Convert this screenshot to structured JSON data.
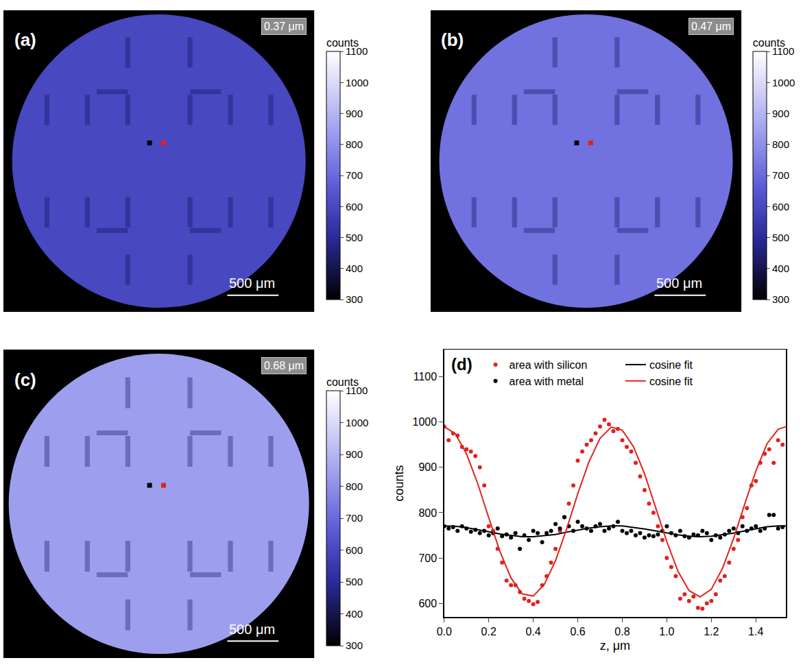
{
  "chart_data": [
    {
      "type": "image",
      "title": "(a)",
      "annotation": "0.37 μm",
      "scale_bar": "500 μm",
      "tick_labels": false,
      "mean_value": 600,
      "colorbar": {
        "title": "counts",
        "range": [
          300,
          1100
        ],
        "ticks": [
          300,
          400,
          500,
          600,
          700,
          800,
          900,
          1000,
          1100
        ]
      }
    },
    {
      "type": "image",
      "title": "(b)",
      "annotation": "0.47 μm",
      "scale_bar": "500 μm",
      "tick_labels": false,
      "mean_value": 720,
      "colorbar": {
        "title": "counts",
        "range": [
          300,
          1100
        ],
        "ticks": [
          300,
          400,
          500,
          600,
          700,
          800,
          900,
          1000,
          1100
        ]
      }
    },
    {
      "type": "image",
      "title": "(c)",
      "annotation": "0.68 μm",
      "scale_bar": "500 μm",
      "tick_labels": false,
      "mean_value": 840,
      "colorbar": {
        "title": "counts",
        "range": [
          300,
          1100
        ],
        "ticks": [
          300,
          400,
          500,
          600,
          700,
          800,
          900,
          1000,
          1100
        ]
      }
    },
    {
      "type": "scatter",
      "title": "(d)",
      "x_label": "z, μm",
      "y_label": "counts",
      "xlim": [
        0,
        1.535
      ],
      "ylim": [
        570,
        1160
      ],
      "xticks": [
        {
          "value": 0,
          "label": "0.0"
        },
        0.2,
        0.4,
        0.6,
        0.8,
        {
          "value": 1,
          "label": "1.0"
        },
        1.2,
        1.4
      ],
      "yticks": [
        600,
        700,
        800,
        900,
        1000,
        1100
      ],
      "grid": false,
      "legend": "upper left",
      "series": [
        {
          "name": "area with silicon",
          "type": "scatter",
          "marker": "circle",
          "color": "#e3211c",
          "x": [
            0,
            0.02,
            0.04,
            0.06,
            0.08,
            0.1,
            0.12,
            0.14,
            0.16,
            0.18,
            0.2,
            0.22,
            0.24,
            0.26,
            0.28,
            0.3,
            0.32,
            0.34,
            0.36,
            0.38,
            0.4,
            0.42,
            0.44,
            0.46,
            0.48,
            0.5,
            0.52,
            0.54,
            0.56,
            0.58,
            0.6,
            0.62,
            0.64,
            0.66,
            0.68,
            0.7,
            0.72,
            0.74,
            0.76,
            0.78,
            0.8,
            0.82,
            0.84,
            0.86,
            0.88,
            0.9,
            0.92,
            0.94,
            0.96,
            0.98,
            1,
            1.02,
            1.04,
            1.06,
            1.08,
            1.1,
            1.12,
            1.14,
            1.16,
            1.18,
            1.2,
            1.22,
            1.24,
            1.26,
            1.28,
            1.3,
            1.32,
            1.34,
            1.36,
            1.38,
            1.4,
            1.42,
            1.44,
            1.46,
            1.48,
            1.5,
            1.52
          ],
          "values": [
            990,
            960,
            975,
            970,
            945,
            940,
            935,
            925,
            900,
            860,
            770,
            760,
            720,
            690,
            650,
            640,
            640,
            625,
            610,
            605,
            598,
            603,
            640,
            660,
            690,
            720,
            760,
            790,
            820,
            860,
            915,
            935,
            950,
            960,
            975,
            990,
            1005,
            995,
            980,
            985,
            960,
            945,
            935,
            910,
            880,
            850,
            820,
            800,
            770,
            740,
            700,
            680,
            660,
            610,
            620,
            605,
            615,
            590,
            588,
            600,
            605,
            620,
            650,
            660,
            690,
            720,
            740,
            790,
            810,
            860,
            870,
            910,
            930,
            940,
            910,
            960,
            950
          ]
        },
        {
          "name": "area with metal",
          "type": "scatter",
          "marker": "circle",
          "color": "#000000",
          "x": [
            0,
            0.02,
            0.04,
            0.06,
            0.08,
            0.1,
            0.12,
            0.14,
            0.16,
            0.18,
            0.2,
            0.22,
            0.24,
            0.26,
            0.28,
            0.3,
            0.32,
            0.34,
            0.36,
            0.38,
            0.4,
            0.42,
            0.44,
            0.46,
            0.48,
            0.5,
            0.52,
            0.54,
            0.56,
            0.58,
            0.6,
            0.62,
            0.64,
            0.66,
            0.68,
            0.7,
            0.72,
            0.74,
            0.76,
            0.78,
            0.8,
            0.82,
            0.84,
            0.86,
            0.88,
            0.9,
            0.92,
            0.94,
            0.96,
            0.98,
            1,
            1.02,
            1.04,
            1.06,
            1.08,
            1.1,
            1.12,
            1.14,
            1.16,
            1.18,
            1.2,
            1.22,
            1.24,
            1.26,
            1.28,
            1.3,
            1.32,
            1.34,
            1.36,
            1.38,
            1.4,
            1.42,
            1.44,
            1.46,
            1.48,
            1.5,
            1.52
          ],
          "values": [
            770,
            765,
            768,
            760,
            770,
            765,
            758,
            762,
            755,
            760,
            750,
            755,
            765,
            748,
            752,
            745,
            755,
            720,
            750,
            740,
            760,
            755,
            735,
            755,
            760,
            775,
            765,
            790,
            770,
            760,
            780,
            770,
            765,
            760,
            770,
            775,
            760,
            765,
            770,
            780,
            760,
            755,
            760,
            750,
            755,
            745,
            750,
            748,
            752,
            760,
            770,
            755,
            750,
            760,
            748,
            745,
            752,
            750,
            760,
            755,
            740,
            750,
            745,
            752,
            760,
            765,
            755,
            770,
            760,
            765,
            770,
            760,
            765,
            795,
            795,
            765,
            768
          ]
        },
        {
          "name": "cosine fit",
          "type": "line",
          "line_style": "solid",
          "color": "#000000",
          "x": [
            0,
            0.05,
            0.1,
            0.15,
            0.2,
            0.25,
            0.3,
            0.35,
            0.4,
            0.45,
            0.5,
            0.55,
            0.6,
            0.65,
            0.7,
            0.75,
            0.8,
            0.85,
            0.9,
            0.95,
            1,
            1.05,
            1.1,
            1.15,
            1.2,
            1.25,
            1.3,
            1.35,
            1.4,
            1.45,
            1.5,
            1.535
          ],
          "values": [
            771,
            770,
            767,
            763,
            758,
            753,
            750,
            747,
            747,
            749,
            752,
            757,
            762,
            766,
            769,
            771,
            771,
            768,
            764,
            760,
            755,
            751,
            748,
            747,
            748,
            751,
            755,
            760,
            765,
            769,
            771,
            771
          ]
        },
        {
          "name": "cosine fit",
          "type": "line",
          "line_style": "solid",
          "color": "#e3211c",
          "x": [
            0,
            0.05,
            0.1,
            0.15,
            0.2,
            0.25,
            0.3,
            0.35,
            0.4,
            0.45,
            0.5,
            0.55,
            0.6,
            0.65,
            0.7,
            0.75,
            0.8,
            0.85,
            0.9,
            0.95,
            1,
            1.05,
            1.1,
            1.15,
            1.2,
            1.25,
            1.3,
            1.35,
            1.4,
            1.45,
            1.5,
            1.535
          ],
          "values": [
            990,
            974,
            930,
            865,
            789,
            715,
            656,
            621,
            616,
            642,
            694,
            764,
            842,
            912,
            964,
            989,
            982,
            946,
            886,
            812,
            736,
            671,
            628,
            614,
            631,
            677,
            743,
            819,
            892,
            952,
            984,
            990
          ]
        }
      ]
    }
  ]
}
